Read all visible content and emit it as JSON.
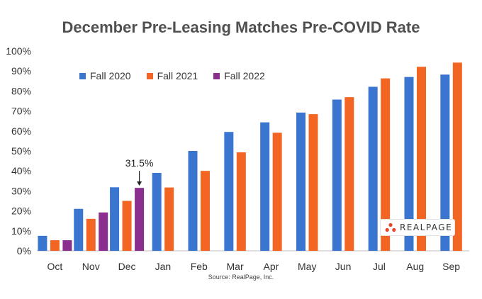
{
  "chart_data": {
    "type": "bar",
    "title": "December Pre-Leasing Matches Pre-COVID Rate",
    "source": "Source: RealPage, Inc.",
    "categories": [
      "Oct",
      "Nov",
      "Dec",
      "Jan",
      "Feb",
      "Mar",
      "Apr",
      "May",
      "Jun",
      "Jul",
      "Aug",
      "Sep"
    ],
    "series": [
      {
        "name": "Fall 2020",
        "color": "#3a75d0",
        "values": [
          7.5,
          21,
          31.8,
          39,
          50,
          59.5,
          64.3,
          69.2,
          75.7,
          82.1,
          87,
          88.2
        ]
      },
      {
        "name": "Fall 2021",
        "color": "#f26522",
        "values": [
          5.3,
          16,
          25,
          31.7,
          40,
          49.3,
          59.1,
          68.4,
          76.9,
          86.3,
          92.1,
          94.2
        ]
      },
      {
        "name": "Fall 2022",
        "color": "#8a2f8e",
        "values": [
          5.3,
          19.2,
          31.5,
          null,
          null,
          null,
          null,
          null,
          null,
          null,
          null,
          null
        ]
      }
    ],
    "yticks": [
      "0%",
      "10%",
      "20%",
      "30%",
      "40%",
      "50%",
      "60%",
      "70%",
      "80%",
      "90%",
      "100%"
    ],
    "ylim": [
      0,
      100
    ],
    "grid": false,
    "legend_position": "top-left",
    "annotation": {
      "text": "31.5%",
      "category": "Dec",
      "series": "Fall 2022",
      "value": 31.5
    }
  },
  "logo": {
    "text": "REALPAGE",
    "icon": "realpage-logo-icon",
    "color": "#e8442b"
  }
}
